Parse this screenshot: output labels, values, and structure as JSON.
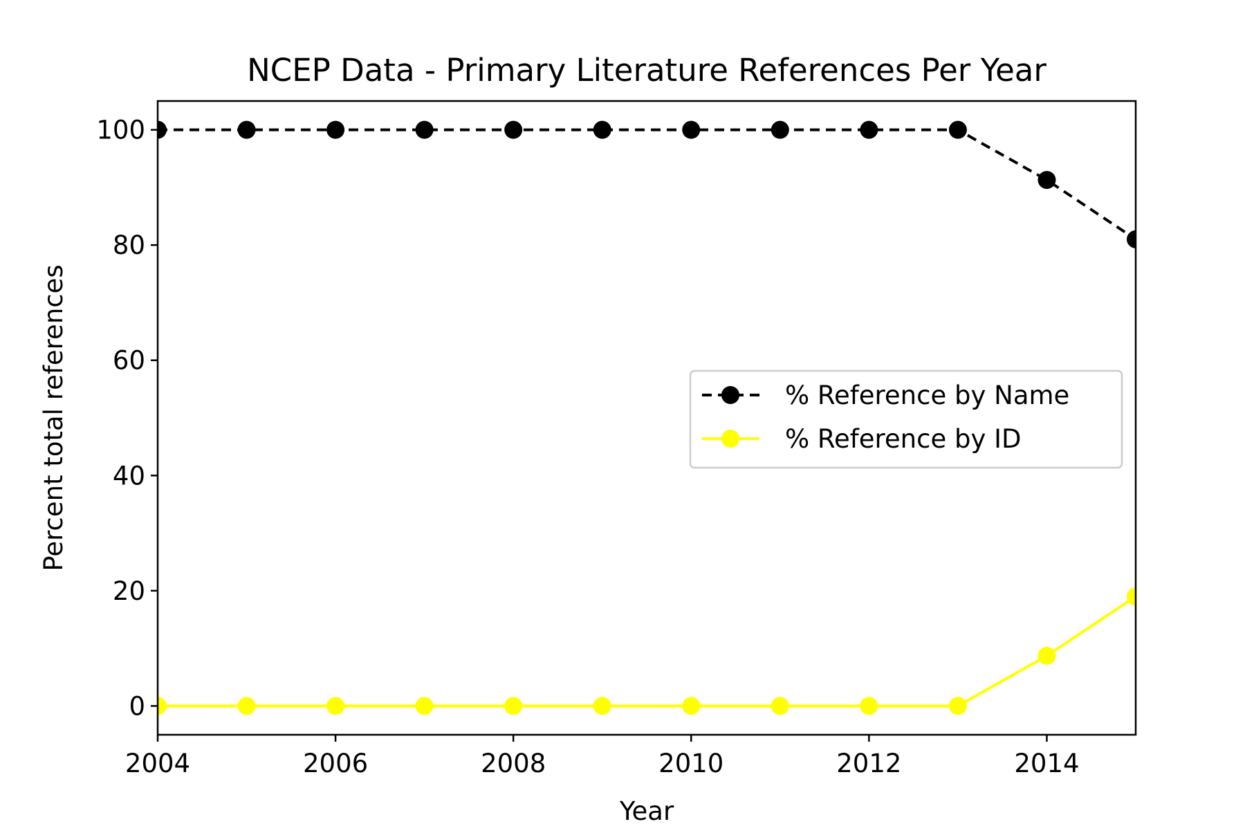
{
  "chart_data": {
    "type": "line",
    "title": "NCEP Data - Primary Literature References Per Year",
    "xlabel": "Year",
    "ylabel": "Percent total references",
    "x": [
      2004,
      2005,
      2006,
      2007,
      2008,
      2009,
      2010,
      2011,
      2012,
      2013,
      2014,
      2015
    ],
    "xlim": [
      2004,
      2015
    ],
    "ylim": [
      -5,
      105
    ],
    "xticks": [
      2004,
      2006,
      2008,
      2010,
      2012,
      2014
    ],
    "xtick_labels": [
      "2004",
      "2006",
      "2008",
      "2010",
      "2012",
      "2014"
    ],
    "yticks": [
      0,
      20,
      40,
      60,
      80,
      100
    ],
    "ytick_labels": [
      "0",
      "20",
      "40",
      "60",
      "80",
      "100"
    ],
    "grid": false,
    "legend_position": "center-right",
    "series": [
      {
        "name": "% Reference by Name",
        "values": [
          100,
          100,
          100,
          100,
          100,
          100,
          100,
          100,
          100,
          100,
          91.3,
          81
        ],
        "color": "#000000",
        "line_style": "dashed",
        "marker": "circle"
      },
      {
        "name": "% Reference by ID",
        "values": [
          0,
          0,
          0,
          0,
          0,
          0,
          0,
          0,
          0,
          0,
          8.7,
          19
        ],
        "color": "#ffff00",
        "line_style": "solid",
        "marker": "circle"
      }
    ]
  }
}
